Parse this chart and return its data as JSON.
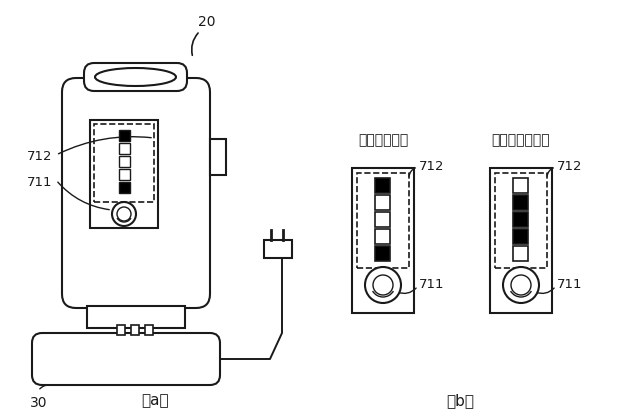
{
  "bg_color": "#ffffff",
  "line_color": "#1a1a1a",
  "label_a": "（a）",
  "label_b": "（b）",
  "label_20": "20",
  "label_30": "30",
  "label_711a": "711",
  "label_712a": "712",
  "label_711b1": "711",
  "label_712b1": "712",
  "label_711b2": "711",
  "label_712b2": "712",
  "title_man": "満充電モード",
  "title_yochi": "余地充電モード",
  "leds_man": [
    true,
    false,
    false,
    false,
    true
  ],
  "leds_yochi": [
    false,
    true,
    true,
    true,
    false
  ]
}
